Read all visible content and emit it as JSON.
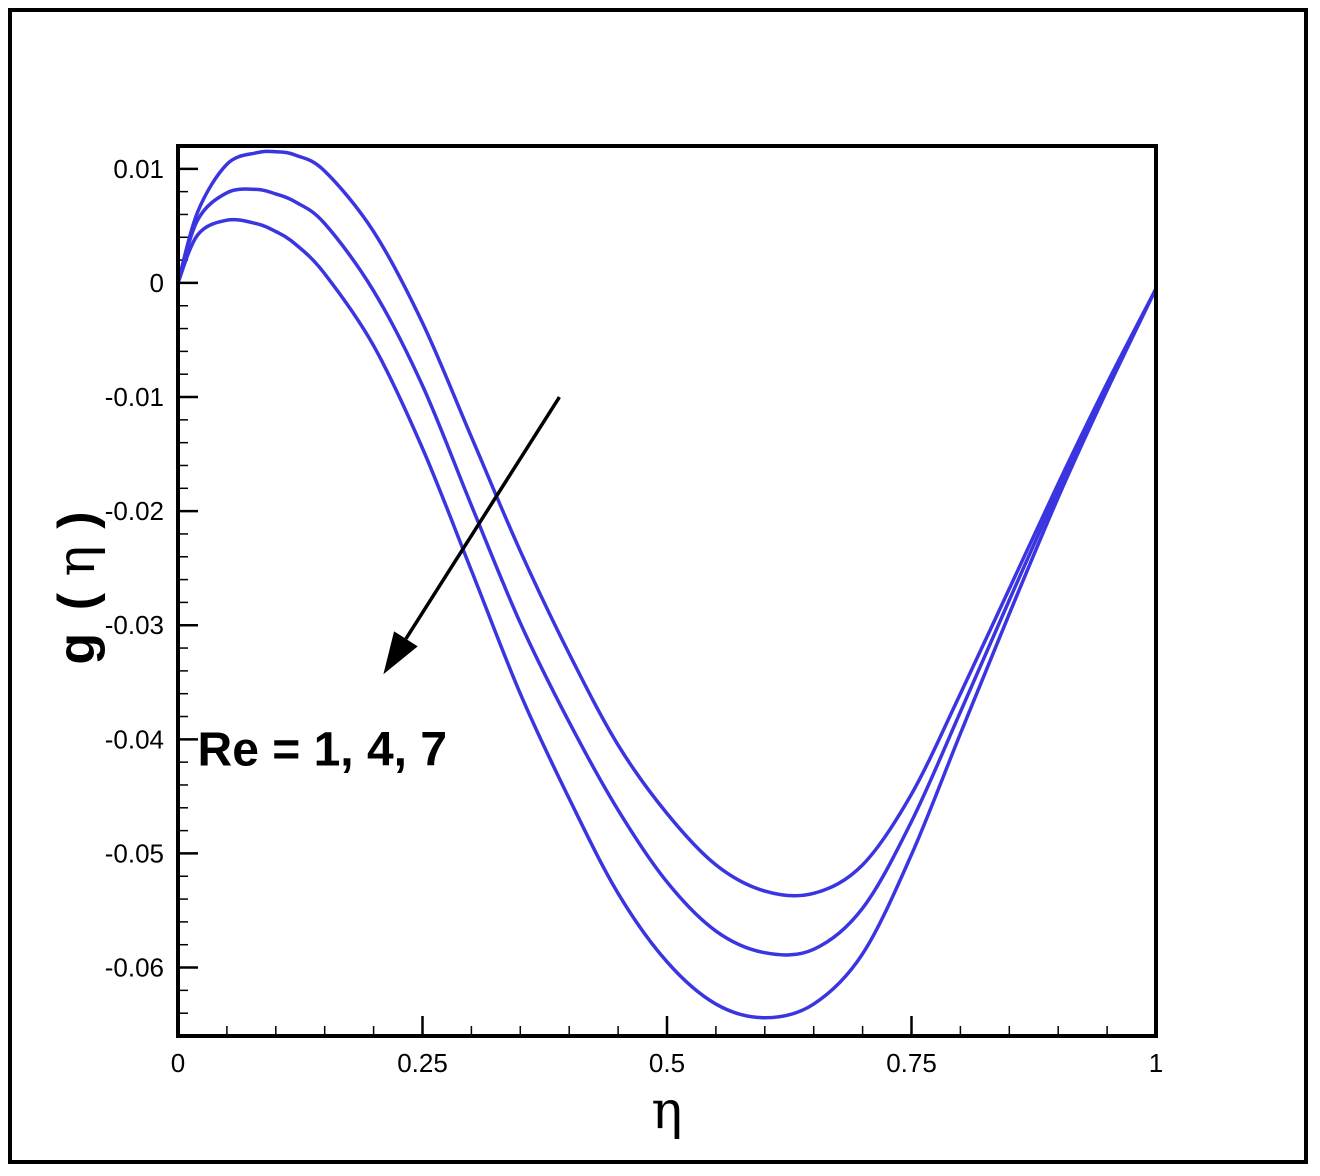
{
  "chart_data": {
    "type": "line",
    "title": "",
    "xlabel": "η",
    "ylabel_main": "g",
    "ylabel_paren_open": "(",
    "ylabel_var": "η",
    "ylabel_paren_close": ")",
    "xlim": [
      0,
      1
    ],
    "ylim": [
      -0.066,
      0.012
    ],
    "x_ticks": [
      0,
      0.25,
      0.5,
      0.75,
      1
    ],
    "x_tick_labels": [
      "0",
      "0.25",
      "0.5",
      "0.75",
      "1"
    ],
    "y_ticks": [
      0.01,
      0,
      -0.01,
      -0.02,
      -0.03,
      -0.04,
      -0.05,
      -0.06
    ],
    "y_tick_labels": [
      "0.01",
      "0",
      "-0.01",
      "-0.02",
      "-0.03",
      "-0.04",
      "-0.05",
      "-0.06"
    ],
    "grid": false,
    "line_color": "#3a35e0",
    "x": [
      0,
      0.02,
      0.05,
      0.08,
      0.1,
      0.12,
      0.15,
      0.2,
      0.25,
      0.3,
      0.35,
      0.4,
      0.45,
      0.5,
      0.55,
      0.6,
      0.65,
      0.7,
      0.75,
      0.8,
      0.85,
      0.9,
      0.95,
      1
    ],
    "series": [
      {
        "values": [
          0,
          0.0062,
          0.0104,
          0.0114,
          0.0115,
          0.0112,
          0.0098,
          0.0045,
          -0.0035,
          -0.0135,
          -0.0235,
          -0.0325,
          -0.0405,
          -0.0465,
          -0.051,
          -0.0533,
          -0.0535,
          -0.051,
          -0.0448,
          -0.036,
          -0.0268,
          -0.0176,
          -0.0088,
          -0.0005
        ]
      },
      {
        "values": [
          0,
          0.0055,
          0.0079,
          0.0082,
          0.0078,
          0.0071,
          0.0052,
          -0.0007,
          -0.009,
          -0.0195,
          -0.0298,
          -0.0385,
          -0.0462,
          -0.0525,
          -0.0568,
          -0.0587,
          -0.0584,
          -0.0548,
          -0.0472,
          -0.0376,
          -0.0278,
          -0.0182,
          -0.0091,
          -0.0005
        ]
      },
      {
        "values": [
          0,
          0.0042,
          0.0055,
          0.0052,
          0.0045,
          0.0034,
          0.0008,
          -0.0055,
          -0.0145,
          -0.0252,
          -0.036,
          -0.0452,
          -0.0535,
          -0.0595,
          -0.0632,
          -0.0644,
          -0.0632,
          -0.0588,
          -0.0501,
          -0.0395,
          -0.029,
          -0.0188,
          -0.0094,
          -0.0005
        ]
      }
    ],
    "annotation": {
      "text": "Re = 1, 4, 7",
      "arrow_from": [
        0.39,
        -0.01
      ],
      "arrow_to": [
        0.21,
        -0.0343
      ],
      "text_anchor": [
        0.02,
        -0.0395
      ]
    }
  }
}
